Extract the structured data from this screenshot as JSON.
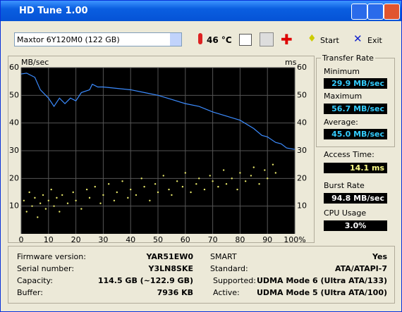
{
  "window": {
    "title": "HD Tune 1.00"
  },
  "toolbar": {
    "drive": "Maxtor 6Y120M0 (122 GB)",
    "temperature": "46 °C",
    "start": "Start",
    "exit": "Exit"
  },
  "side_panel": {
    "transfer_rate": "Transfer Rate",
    "minimum_label": "Minimum",
    "minimum": "29.9 MB/sec",
    "maximum_label": "Maximum",
    "maximum": "56.7 MB/sec",
    "average_label": "Average:",
    "average": "45.0 MB/sec",
    "access_time_label": "Access Time:",
    "access_time": "14.1 ms",
    "burst_rate_label": "Burst Rate",
    "burst_rate": "94.8 MB/sec",
    "cpu_usage_label": "CPU Usage",
    "cpu_usage": "3.0%"
  },
  "info": {
    "rows": [
      [
        "Firmware version:",
        "YAR51EW0",
        "SMART",
        "Yes"
      ],
      [
        "Serial number:",
        "Y3LN8SKE",
        "Standard:",
        "ATA/ATAPI-7"
      ],
      [
        "Capacity:",
        "114.5 GB (~122.9 GB)",
        "Supported:",
        "UDMA Mode 6 (Ultra ATA/133)"
      ],
      [
        "Buffer:",
        "7936 KB",
        "Active:",
        "UDMA Mode 5 (Ultra ATA/100)"
      ]
    ]
  },
  "chart_data": {
    "type": "line",
    "y_label": "MB/sec",
    "y2_label": "ms",
    "xlim": [
      0,
      100
    ],
    "xticks": [
      0,
      10,
      20,
      30,
      40,
      50,
      60,
      70,
      80,
      90,
      {
        "value": 100,
        "label": "100%"
      }
    ],
    "ylim": [
      0,
      60
    ],
    "yticks": [
      10,
      20,
      30,
      40,
      50,
      60
    ],
    "y2lim": [
      0,
      60
    ],
    "y2ticks": [
      10,
      20,
      30,
      40,
      50,
      60
    ],
    "grid": true,
    "series": [
      {
        "type": "line",
        "color": "#3c8cff",
        "x": [
          0,
          2,
          5,
          7,
          10,
          12,
          14,
          16,
          18,
          20,
          22,
          25,
          26,
          28,
          30,
          35,
          40,
          45,
          50,
          55,
          60,
          65,
          70,
          75,
          80,
          85,
          88,
          90,
          93,
          95,
          97,
          100
        ],
        "values": [
          57.7,
          58,
          56.5,
          52,
          49,
          46,
          49,
          47,
          49,
          48,
          51,
          52,
          54,
          53,
          53,
          52.5,
          52,
          51,
          50,
          48.5,
          47,
          46,
          44,
          42.5,
          41,
          38,
          35.5,
          35,
          33,
          32.5,
          31,
          30.5
        ]
      },
      {
        "type": "scatter",
        "axis": "y2",
        "color": "#e6e66a",
        "x": [
          1,
          2,
          3,
          4,
          5,
          6,
          7,
          8,
          9,
          10,
          11,
          12,
          13,
          14,
          15,
          17,
          19,
          20,
          22,
          24,
          25,
          27,
          29,
          30,
          32,
          34,
          35,
          37,
          39,
          40,
          42,
          44,
          45,
          47,
          49,
          50,
          52,
          54,
          55,
          57,
          59,
          60,
          62,
          64,
          65,
          67,
          69,
          70,
          72,
          74,
          75,
          77,
          79,
          80,
          82,
          84,
          85,
          87,
          89,
          90,
          92,
          93
        ],
        "values": [
          12,
          8,
          15,
          10,
          13,
          6,
          11,
          14,
          9,
          12,
          16,
          10,
          13,
          8,
          14,
          11,
          15,
          12,
          9,
          16,
          13,
          17,
          11,
          14,
          18,
          12,
          15,
          19,
          13,
          16,
          14,
          20,
          17,
          12,
          18,
          15,
          21,
          16,
          14,
          19,
          17,
          22,
          15,
          18,
          20,
          16,
          21,
          19,
          17,
          23,
          18,
          20,
          16,
          22,
          19,
          21,
          24,
          18,
          23,
          20,
          25,
          22
        ]
      }
    ]
  }
}
